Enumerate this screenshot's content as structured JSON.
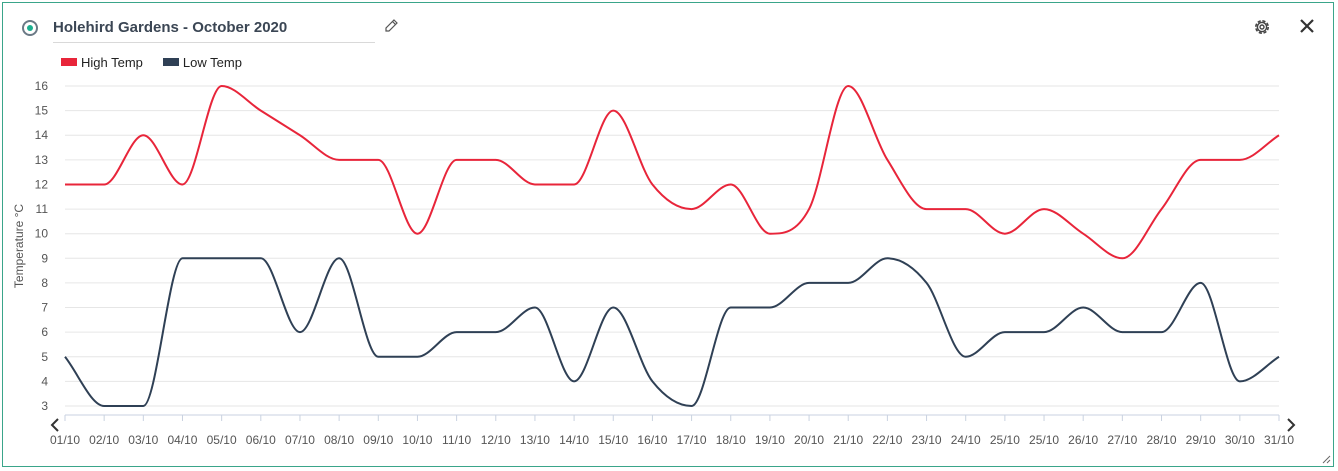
{
  "header": {
    "title": "Holehird Gardens - October 2020",
    "edit_icon": "pencil-icon",
    "settings_icon": "gear-icon",
    "close_icon": "close-icon"
  },
  "colors": {
    "accent": "#1bb090",
    "border": "#3aa58a",
    "high": "#e8253a",
    "low": "#2f4055"
  },
  "chart_data": {
    "type": "line",
    "ylabel": "Temperature °C",
    "xlabel": "",
    "ylim": [
      3,
      16
    ],
    "grid": true,
    "legend_position": "top-left",
    "categories": [
      "01/10",
      "02/10",
      "03/10",
      "04/10",
      "05/10",
      "06/10",
      "07/10",
      "08/10",
      "09/10",
      "10/10",
      "11/10",
      "12/10",
      "13/10",
      "14/10",
      "15/10",
      "16/10",
      "17/10",
      "18/10",
      "19/10",
      "20/10",
      "21/10",
      "22/10",
      "23/10",
      "24/10",
      "25/10",
      "25/10",
      "26/10",
      "27/10",
      "28/10",
      "29/10",
      "30/10",
      "31/10"
    ],
    "series": [
      {
        "name": "High Temp",
        "color": "#e8253a",
        "values": [
          12,
          12,
          14,
          12,
          16,
          15,
          14,
          13,
          13,
          10,
          13,
          13,
          12,
          12,
          15,
          12,
          11,
          12,
          10,
          11,
          16,
          13,
          11,
          11,
          10,
          11,
          10,
          9,
          11,
          13,
          13,
          14
        ]
      },
      {
        "name": "Low Temp",
        "color": "#2f4055",
        "values": [
          5,
          3,
          3,
          9,
          9,
          9,
          6,
          9,
          5,
          5,
          6,
          6,
          7,
          4,
          7,
          4,
          3,
          7,
          7,
          8,
          8,
          9,
          8,
          5,
          6,
          6,
          7,
          6,
          6,
          8,
          4,
          5
        ]
      }
    ],
    "y_ticks": [
      3,
      4,
      5,
      6,
      7,
      8,
      9,
      10,
      11,
      12,
      13,
      14,
      15,
      16
    ]
  }
}
